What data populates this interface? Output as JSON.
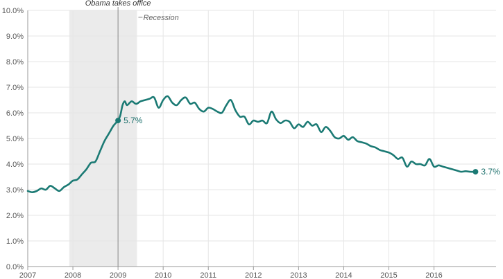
{
  "chart_data": {
    "type": "line",
    "title": "",
    "xlabel": "",
    "ylabel": "",
    "xlim": [
      2007.0,
      2016.96
    ],
    "ylim": [
      0,
      10
    ],
    "grid": true,
    "line_color": "#1b7a74",
    "recession_fill": "#ebebeb",
    "x_ticks": [
      "2007",
      "2008",
      "2009",
      "2010",
      "2011",
      "2012",
      "2013",
      "2014",
      "2015",
      "2016"
    ],
    "y_ticks": [
      "0.0%",
      "1.0%",
      "2.0%",
      "3.0%",
      "4.0%",
      "5.0%",
      "6.0%",
      "7.0%",
      "8.0%",
      "9.0%",
      "10.0%"
    ],
    "recession": {
      "start": 2007.92,
      "end": 2009.42,
      "label": "Recession"
    },
    "event": {
      "x": 2009.0,
      "label": "Obama takes office"
    },
    "start_label": {
      "x": 2009.0,
      "y": 5.7,
      "text": "5.7%"
    },
    "end_label": {
      "x": 2016.92,
      "y": 3.7,
      "text": "3.7%"
    },
    "series": [
      {
        "x": [
          2007.0,
          2007.1,
          2007.2,
          2007.3,
          2007.4,
          2007.5,
          2007.6,
          2007.7,
          2007.8,
          2007.9,
          2008.0,
          2008.1,
          2008.2,
          2008.3,
          2008.4,
          2008.5,
          2008.6,
          2008.7,
          2008.8,
          2008.9,
          2009.0,
          2009.05,
          2009.1,
          2009.15,
          2009.2,
          2009.3,
          2009.4,
          2009.5,
          2009.6,
          2009.7,
          2009.8,
          2009.9,
          2010.0,
          2010.1,
          2010.2,
          2010.3,
          2010.4,
          2010.5,
          2010.6,
          2010.7,
          2010.8,
          2010.9,
          2011.0,
          2011.1,
          2011.2,
          2011.3,
          2011.4,
          2011.5,
          2011.6,
          2011.7,
          2011.8,
          2011.9,
          2012.0,
          2012.1,
          2012.2,
          2012.3,
          2012.4,
          2012.5,
          2012.6,
          2012.7,
          2012.8,
          2012.9,
          2013.0,
          2013.1,
          2013.2,
          2013.3,
          2013.4,
          2013.5,
          2013.6,
          2013.7,
          2013.8,
          2013.9,
          2014.0,
          2014.1,
          2014.2,
          2014.3,
          2014.4,
          2014.5,
          2014.6,
          2014.7,
          2014.8,
          2014.9,
          2015.0,
          2015.1,
          2015.2,
          2015.3,
          2015.4,
          2015.5,
          2015.6,
          2015.7,
          2015.8,
          2015.9,
          2016.0,
          2016.1,
          2016.2,
          2016.3,
          2016.4,
          2016.5,
          2016.6,
          2016.7,
          2016.8,
          2016.92
        ],
        "values": [
          2.95,
          2.9,
          2.95,
          3.05,
          3.0,
          3.15,
          3.05,
          2.95,
          3.1,
          3.2,
          3.35,
          3.4,
          3.6,
          3.8,
          4.05,
          4.1,
          4.5,
          4.9,
          5.2,
          5.5,
          5.7,
          5.9,
          6.3,
          6.45,
          6.3,
          6.45,
          6.35,
          6.45,
          6.5,
          6.55,
          6.6,
          6.2,
          6.5,
          6.65,
          6.4,
          6.3,
          6.5,
          6.6,
          6.35,
          6.4,
          6.15,
          6.05,
          6.2,
          6.15,
          6.05,
          6.0,
          6.3,
          6.5,
          6.1,
          5.85,
          5.85,
          5.55,
          5.7,
          5.65,
          5.7,
          5.6,
          6.05,
          5.75,
          5.6,
          5.7,
          5.65,
          5.4,
          5.55,
          5.45,
          5.65,
          5.5,
          5.55,
          5.25,
          5.45,
          5.3,
          5.05,
          5.0,
          5.1,
          4.95,
          5.05,
          4.9,
          4.85,
          4.8,
          4.7,
          4.65,
          4.55,
          4.5,
          4.45,
          4.35,
          4.2,
          4.25,
          3.9,
          4.1,
          4.0,
          4.0,
          3.95,
          4.2,
          3.9,
          3.95,
          3.9,
          3.85,
          3.8,
          3.75,
          3.7,
          3.72,
          3.7,
          3.7
        ]
      }
    ]
  }
}
